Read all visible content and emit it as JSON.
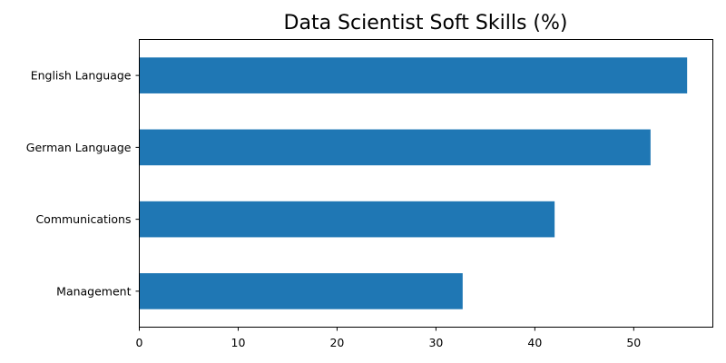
{
  "chart_data": {
    "type": "bar",
    "orientation": "horizontal",
    "title": "Data Scientist Soft Skills (%)",
    "xlabel": "",
    "ylabel": "",
    "categories": [
      "English Language",
      "German Language",
      "Communications",
      "Management"
    ],
    "values": [
      55.4,
      51.7,
      42.0,
      32.7
    ],
    "xlim": [
      0,
      58
    ],
    "xticks": [
      0,
      10,
      20,
      30,
      40,
      50
    ],
    "grid": false,
    "legend": "none",
    "bar_color": "#1f77b4"
  }
}
